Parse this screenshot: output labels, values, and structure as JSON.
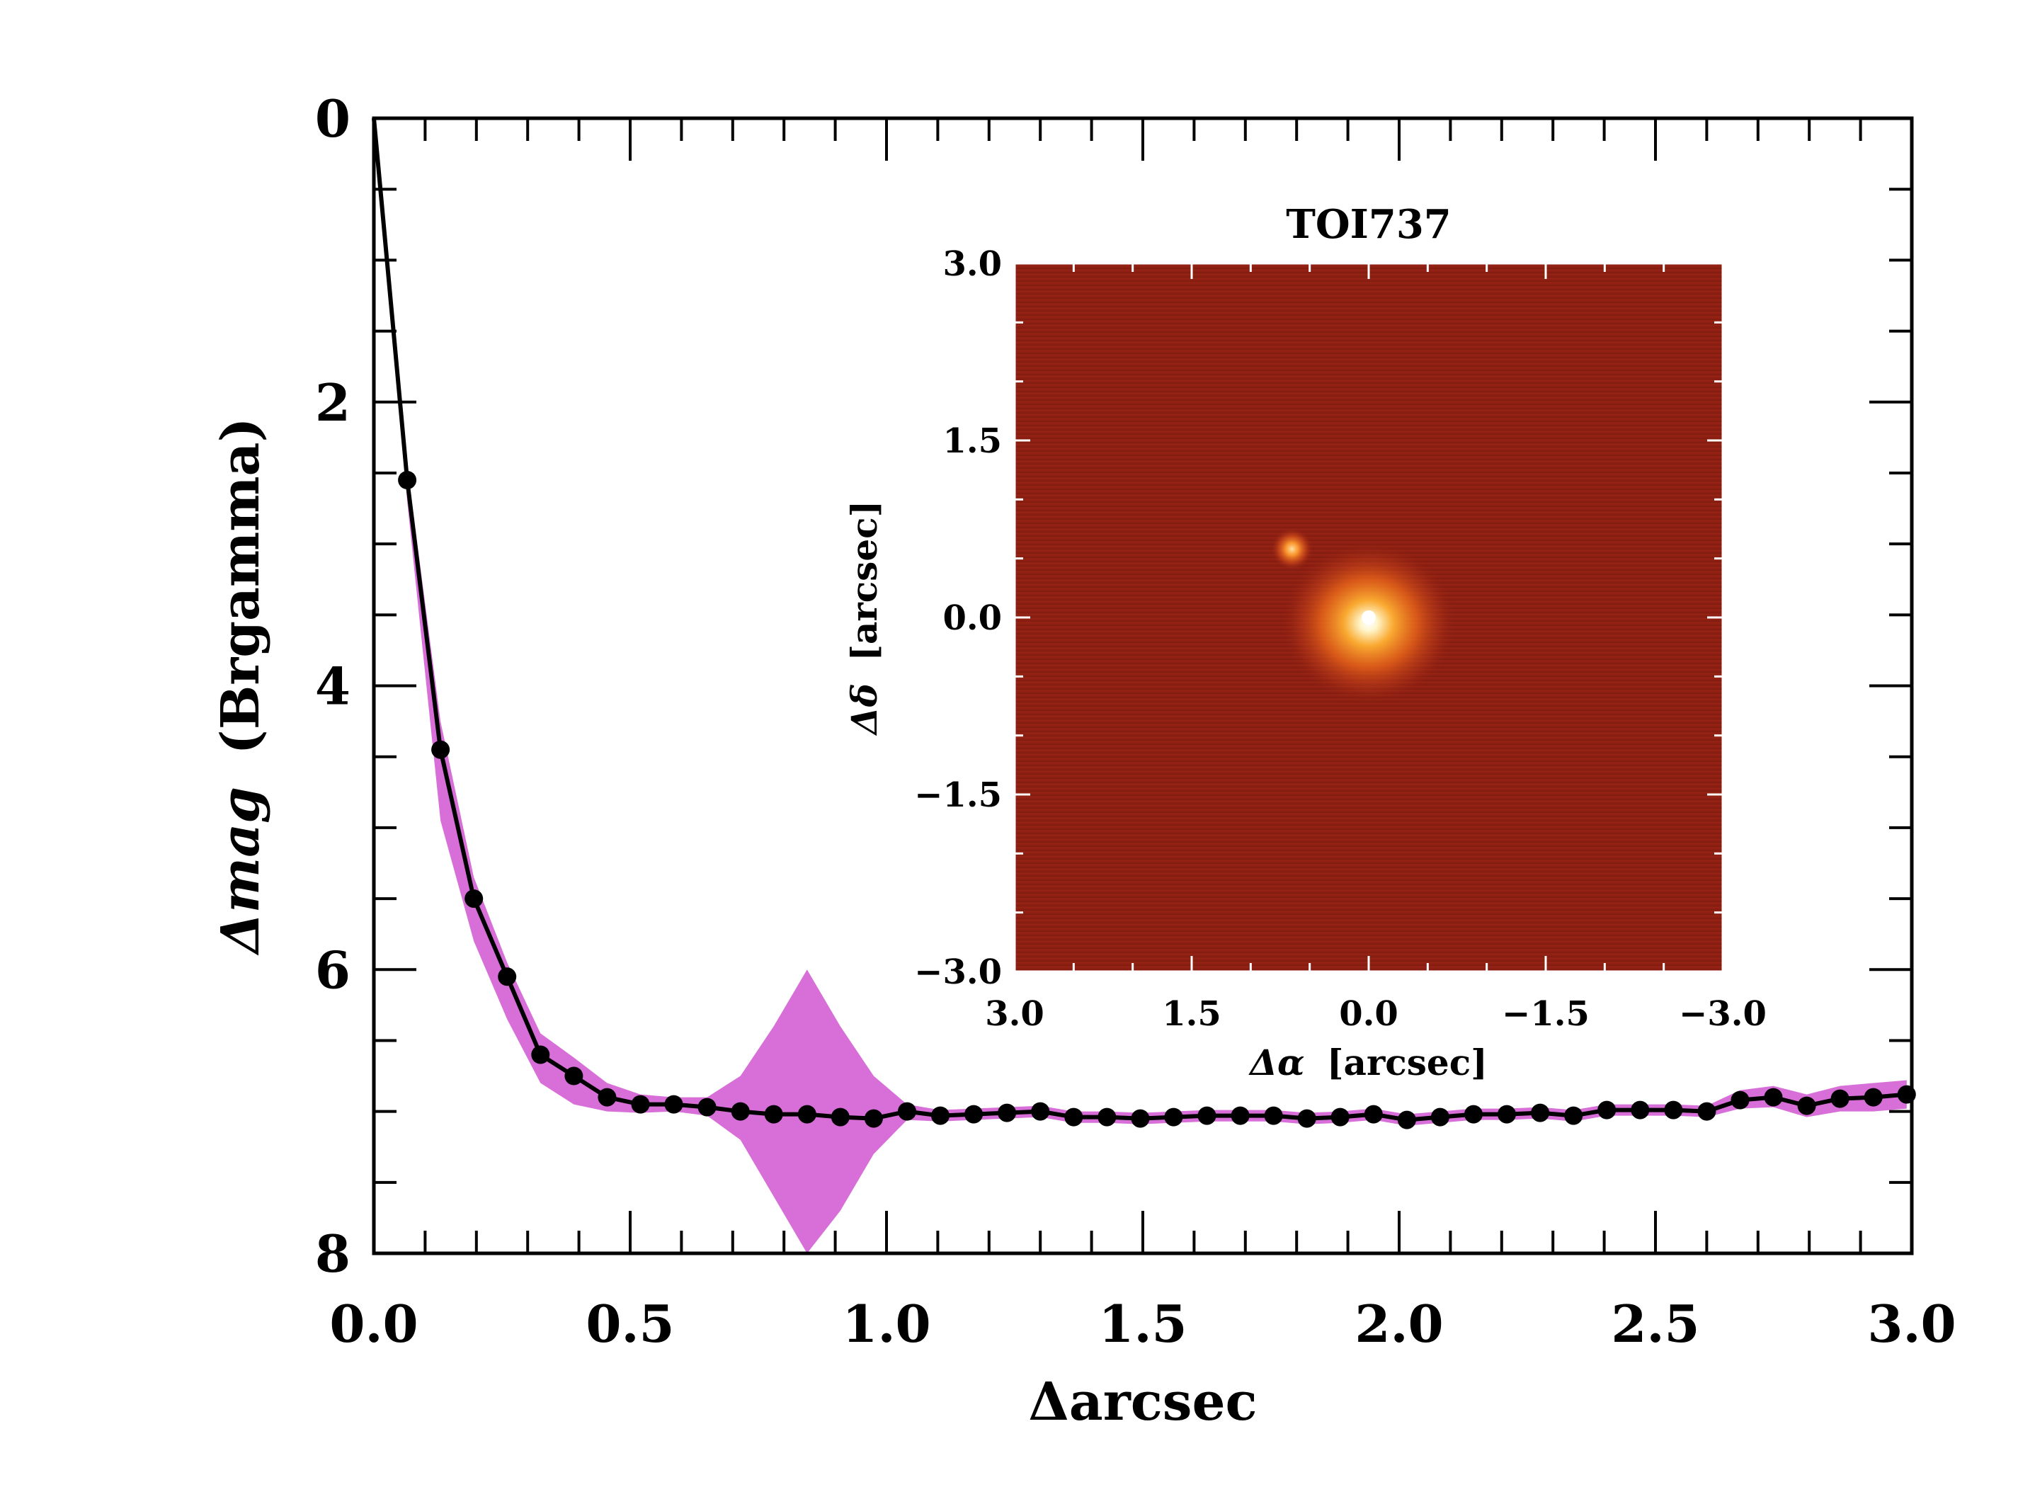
{
  "chart_data": [
    {
      "type": "line",
      "role": "main",
      "title": "",
      "xlabel": "Δarcsec",
      "ylabel_math": "Δmag",
      "ylabel_band": "(Brgamma)",
      "xlim": [
        0.0,
        3.0
      ],
      "ylim": [
        8,
        0
      ],
      "y_inverted": true,
      "x_ticks": [
        "0.0",
        "0.5",
        "1.0",
        "1.5",
        "2.0",
        "2.5",
        "3.0"
      ],
      "y_ticks": [
        "0",
        "2",
        "4",
        "6",
        "8"
      ],
      "band_color": "#d86ed8",
      "line_color": "#000000",
      "series": [
        {
          "name": "contrast curve",
          "x": [
            0.0,
            0.065,
            0.13,
            0.195,
            0.26,
            0.325,
            0.39,
            0.455,
            0.52,
            0.585,
            0.65,
            0.715,
            0.78,
            0.845,
            0.91,
            0.975,
            1.04,
            1.105,
            1.17,
            1.235,
            1.3,
            1.365,
            1.43,
            1.495,
            1.56,
            1.625,
            1.69,
            1.755,
            1.82,
            1.885,
            1.95,
            2.015,
            2.08,
            2.145,
            2.21,
            2.275,
            2.34,
            2.405,
            2.47,
            2.535,
            2.6,
            2.665,
            2.73,
            2.795,
            2.86,
            2.925,
            2.99
          ],
          "y": [
            0.0,
            2.55,
            4.45,
            5.5,
            6.05,
            6.6,
            6.75,
            6.9,
            6.95,
            6.95,
            6.97,
            7.0,
            7.02,
            7.02,
            7.04,
            7.05,
            7.0,
            7.03,
            7.02,
            7.01,
            7.0,
            7.04,
            7.04,
            7.05,
            7.04,
            7.03,
            7.03,
            7.03,
            7.05,
            7.04,
            7.02,
            7.06,
            7.04,
            7.02,
            7.02,
            7.01,
            7.03,
            6.99,
            6.99,
            6.99,
            7.0,
            6.92,
            6.9,
            6.96,
            6.91,
            6.9,
            6.88
          ],
          "markers_start_index": 1
        },
        {
          "name": "uncertainty band upper",
          "x": [
            0.0,
            0.065,
            0.13,
            0.195,
            0.26,
            0.325,
            0.39,
            0.455,
            0.52,
            0.585,
            0.65,
            0.715,
            0.78,
            0.845,
            0.91,
            0.975,
            1.04,
            1.105,
            1.17,
            1.235,
            1.3,
            1.365,
            1.43,
            1.495,
            1.56,
            1.625,
            1.69,
            1.755,
            1.82,
            1.885,
            1.95,
            2.015,
            2.08,
            2.145,
            2.21,
            2.275,
            2.34,
            2.405,
            2.47,
            2.535,
            2.6,
            2.665,
            2.73,
            2.795,
            2.86,
            2.925,
            2.99
          ],
          "y": [
            0.0,
            2.45,
            4.25,
            5.35,
            5.95,
            6.45,
            6.62,
            6.8,
            6.88,
            6.9,
            6.9,
            6.75,
            6.4,
            6.0,
            6.4,
            6.75,
            6.95,
            6.99,
            6.98,
            6.97,
            6.96,
            7.0,
            7.0,
            7.01,
            7.0,
            6.99,
            6.99,
            6.99,
            7.01,
            7.0,
            6.98,
            7.02,
            7.0,
            6.98,
            6.98,
            6.97,
            6.99,
            6.95,
            6.95,
            6.95,
            6.96,
            6.85,
            6.82,
            6.88,
            6.82,
            6.8,
            6.78
          ]
        },
        {
          "name": "uncertainty band lower",
          "x": [
            0.0,
            0.065,
            0.13,
            0.195,
            0.26,
            0.325,
            0.39,
            0.455,
            0.52,
            0.585,
            0.65,
            0.715,
            0.78,
            0.845,
            0.91,
            0.975,
            1.04,
            1.105,
            1.17,
            1.235,
            1.3,
            1.365,
            1.43,
            1.495,
            1.56,
            1.625,
            1.69,
            1.755,
            1.82,
            1.885,
            1.95,
            2.015,
            2.08,
            2.145,
            2.21,
            2.275,
            2.34,
            2.405,
            2.47,
            2.535,
            2.6,
            2.665,
            2.73,
            2.795,
            2.86,
            2.925,
            2.99
          ],
          "y": [
            0.0,
            2.7,
            4.95,
            5.8,
            6.35,
            6.8,
            6.95,
            7.0,
            7.01,
            7.0,
            7.03,
            7.2,
            7.6,
            8.0,
            7.7,
            7.3,
            7.06,
            7.07,
            7.06,
            7.05,
            7.04,
            7.08,
            7.08,
            7.09,
            7.08,
            7.07,
            7.07,
            7.07,
            7.09,
            7.08,
            7.06,
            7.1,
            7.08,
            7.06,
            7.06,
            7.05,
            7.07,
            7.03,
            7.03,
            7.03,
            7.04,
            6.98,
            6.97,
            7.04,
            7.0,
            7.0,
            6.98
          ]
        }
      ]
    },
    {
      "type": "heatmap",
      "role": "inset",
      "title": "TOI737",
      "xlabel_math": "Δα",
      "xlabel_unit": "[arcsec]",
      "ylabel_math": "Δδ",
      "ylabel_unit": "[arcsec]",
      "xlim": [
        3.0,
        -3.0
      ],
      "ylim": [
        -3.0,
        3.0
      ],
      "x_ticks": [
        "3.0",
        "1.5",
        "0.0",
        "−1.5",
        "−3.0"
      ],
      "y_ticks": [
        "3.0",
        "1.5",
        "0.0",
        "−1.5",
        "−3.0"
      ],
      "background_color": "#8e1f12",
      "sources": [
        {
          "name": "primary",
          "dx": 0.0,
          "dy": 0.0,
          "brightness": 1.0
        },
        {
          "name": "companion",
          "dx": 0.65,
          "dy": 0.58,
          "brightness": 0.55
        }
      ]
    }
  ]
}
